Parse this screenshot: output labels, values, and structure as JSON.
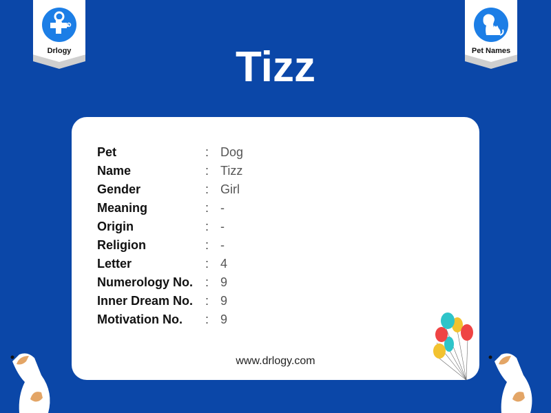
{
  "logos": {
    "left": "Drlogy",
    "right": "Pet Names"
  },
  "title": "Tizz",
  "rows": [
    {
      "label": "Pet",
      "value": "Dog"
    },
    {
      "label": "Name",
      "value": "Tizz"
    },
    {
      "label": "Gender",
      "value": "Girl"
    },
    {
      "label": "Meaning",
      "value": "-"
    },
    {
      "label": "Origin",
      "value": "-"
    },
    {
      "label": "Religion",
      "value": "-"
    },
    {
      "label": "Letter",
      "value": "4"
    },
    {
      "label": "Numerology No.",
      "value": "9"
    },
    {
      "label": "Inner Dream No.",
      "value": "9"
    },
    {
      "label": "Motivation No.",
      "value": "9"
    }
  ],
  "separator": ":",
  "website": "www.drlogy.com",
  "colors": {
    "background": "#0b47a8",
    "card": "#ffffff",
    "logo_blue": "#1c7ee6"
  }
}
